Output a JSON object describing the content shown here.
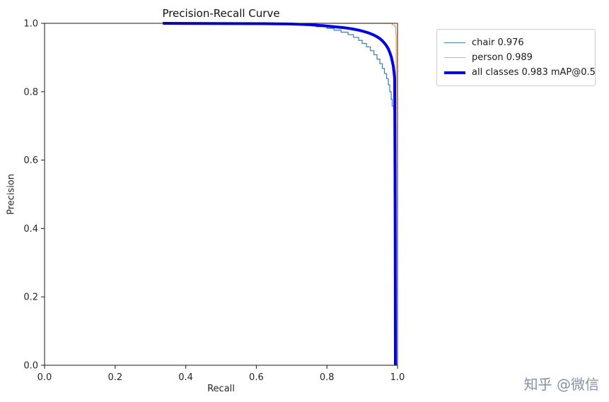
{
  "watermark": "知乎 @微信",
  "chart_data": {
    "type": "line",
    "title": "Precision-Recall Curve",
    "xlabel": "Recall",
    "ylabel": "Precision",
    "xlim": [
      0,
      1
    ],
    "ylim": [
      0,
      1
    ],
    "xticks": [
      0.0,
      0.2,
      0.4,
      0.6,
      0.8,
      1.0
    ],
    "yticks": [
      0.0,
      0.2,
      0.4,
      0.6,
      0.8,
      1.0
    ],
    "xtick_labels": [
      "0.0",
      "0.2",
      "0.4",
      "0.6",
      "0.8",
      "1.0"
    ],
    "ytick_labels": [
      "0.0",
      "0.2",
      "0.4",
      "0.6",
      "0.8",
      "1.0"
    ],
    "grid": false,
    "legend_position": "outside-top-right",
    "series": [
      {
        "name": "chair 0.976",
        "color": "#4682b4",
        "line_width": 1.3,
        "step": true,
        "points": [
          [
            0.335,
            1.0
          ],
          [
            0.66,
            1.0
          ],
          [
            0.7,
            0.997
          ],
          [
            0.74,
            0.994
          ],
          [
            0.77,
            0.99
          ],
          [
            0.8,
            0.985
          ],
          [
            0.82,
            0.98
          ],
          [
            0.84,
            0.974
          ],
          [
            0.86,
            0.967
          ],
          [
            0.875,
            0.959
          ],
          [
            0.89,
            0.95
          ],
          [
            0.9,
            0.941
          ],
          [
            0.912,
            0.931
          ],
          [
            0.923,
            0.92
          ],
          [
            0.933,
            0.908
          ],
          [
            0.942,
            0.895
          ],
          [
            0.95,
            0.882
          ],
          [
            0.957,
            0.868
          ],
          [
            0.963,
            0.853
          ],
          [
            0.969,
            0.838
          ],
          [
            0.974,
            0.82
          ],
          [
            0.978,
            0.8
          ],
          [
            0.982,
            0.778
          ],
          [
            0.985,
            0.758
          ],
          [
            0.989,
            0.75
          ],
          [
            0.991,
            0.5
          ],
          [
            0.992,
            0.0
          ]
        ]
      },
      {
        "name": "person 0.989",
        "color": "#ffa449",
        "line_width": 1.3,
        "step": true,
        "points": [
          [
            0.335,
            1.0
          ],
          [
            0.975,
            1.0
          ],
          [
            0.985,
            0.995
          ],
          [
            0.992,
            0.99
          ],
          [
            0.995,
            0.97
          ],
          [
            0.996,
            0.0
          ]
        ]
      },
      {
        "name": "all classes 0.983 mAP@0.5",
        "color": "#0000e8",
        "line_width": 4,
        "step": false,
        "points": [
          [
            0.335,
            1.0
          ],
          [
            0.62,
            0.999
          ],
          [
            0.7,
            0.998
          ],
          [
            0.75,
            0.996
          ],
          [
            0.79,
            0.993
          ],
          [
            0.82,
            0.99
          ],
          [
            0.85,
            0.987
          ],
          [
            0.87,
            0.984
          ],
          [
            0.89,
            0.98
          ],
          [
            0.905,
            0.976
          ],
          [
            0.918,
            0.972
          ],
          [
            0.93,
            0.967
          ],
          [
            0.94,
            0.962
          ],
          [
            0.949,
            0.956
          ],
          [
            0.956,
            0.95
          ],
          [
            0.963,
            0.942
          ],
          [
            0.969,
            0.934
          ],
          [
            0.974,
            0.925
          ],
          [
            0.978,
            0.915
          ],
          [
            0.982,
            0.903
          ],
          [
            0.985,
            0.89
          ],
          [
            0.988,
            0.875
          ],
          [
            0.99,
            0.858
          ],
          [
            0.992,
            0.838
          ],
          [
            0.9925,
            0.7
          ],
          [
            0.993,
            0.56
          ],
          [
            0.9935,
            0.35
          ],
          [
            0.994,
            0.0
          ]
        ]
      }
    ]
  }
}
